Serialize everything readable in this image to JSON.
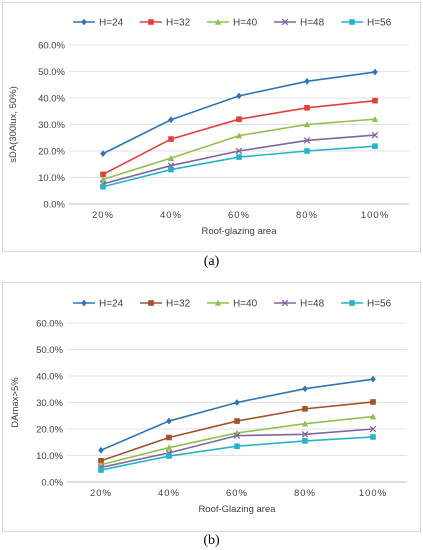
{
  "chart_data": [
    {
      "type": "line",
      "title": "",
      "xlabel": "Roof-glazing area",
      "ylabel": "sDA(300lux, 50%)",
      "categories": [
        "20%",
        "40%",
        "60%",
        "80%",
        "100%"
      ],
      "yticks": [
        "0.0%",
        "10.0%",
        "20.0%",
        "30.0%",
        "40.0%",
        "50.0%",
        "60.0%"
      ],
      "ylim": [
        0,
        60
      ],
      "grid": true,
      "legend_position": "top",
      "series": [
        {
          "name": "H=24",
          "color": "#2e75b6",
          "marker": "diamond",
          "values": [
            19,
            31.8,
            40.8,
            46.3,
            49.8
          ]
        },
        {
          "name": "H=32",
          "color": "#e0403a",
          "marker": "square",
          "values": [
            11.2,
            24.5,
            32,
            36.3,
            39
          ]
        },
        {
          "name": "H=40",
          "color": "#92c050",
          "marker": "triangle",
          "values": [
            9.3,
            17.3,
            25.8,
            30,
            32
          ]
        },
        {
          "name": "H=48",
          "color": "#8064a2",
          "marker": "x",
          "values": [
            7.6,
            14.5,
            20,
            24,
            26
          ]
        },
        {
          "name": "H=56",
          "color": "#26b3c8",
          "marker": "square",
          "values": [
            6.5,
            13,
            17.7,
            20,
            21.8
          ]
        }
      ]
    },
    {
      "type": "line",
      "title": "",
      "xlabel": "Roof-Glazing area",
      "ylabel": "DAmax>5%",
      "categories": [
        "20%",
        "40%",
        "60%",
        "80%",
        "100%"
      ],
      "yticks": [
        "0.0%",
        "10.0%",
        "20.0%",
        "30.0%",
        "40.0%",
        "50.0%",
        "60.0%"
      ],
      "ylim": [
        0,
        60
      ],
      "grid": true,
      "legend_position": "top",
      "series": [
        {
          "name": "H=24",
          "color": "#2e75b6",
          "marker": "diamond",
          "values": [
            12,
            23,
            30,
            35.2,
            38.8
          ]
        },
        {
          "name": "H=32",
          "color": "#a0522d",
          "marker": "square",
          "values": [
            8,
            16.8,
            23,
            27.6,
            30.2
          ]
        },
        {
          "name": "H=40",
          "color": "#92c050",
          "marker": "triangle",
          "values": [
            6.5,
            13,
            18.5,
            22,
            24.7
          ]
        },
        {
          "name": "H=48",
          "color": "#8064a2",
          "marker": "x",
          "values": [
            5.5,
            11,
            17.5,
            18,
            20
          ]
        },
        {
          "name": "H=56",
          "color": "#26b3c8",
          "marker": "square",
          "values": [
            4.5,
            9.8,
            13.5,
            15.5,
            17
          ]
        }
      ]
    }
  ],
  "captions": [
    "(a)",
    "(b)"
  ]
}
